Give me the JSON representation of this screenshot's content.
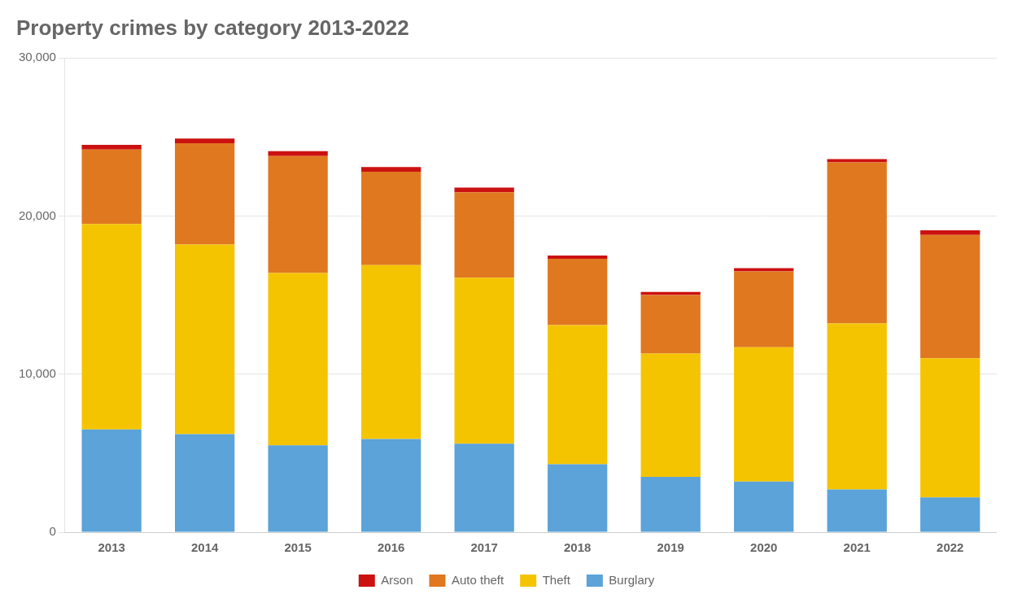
{
  "chart_data": {
    "type": "bar",
    "title": "Property crimes by category 2013-2022",
    "categories": [
      "2013",
      "2014",
      "2015",
      "2016",
      "2017",
      "2018",
      "2019",
      "2020",
      "2021",
      "2022"
    ],
    "series": [
      {
        "name": "Burglary",
        "color": "#5ba3d9",
        "values": [
          6500,
          6200,
          5500,
          5900,
          5600,
          4300,
          3500,
          3200,
          2700,
          2200
        ]
      },
      {
        "name": "Theft",
        "color": "#f5c400",
        "values": [
          13000,
          12000,
          10900,
          11000,
          10500,
          8800,
          7800,
          8500,
          10500,
          8800
        ]
      },
      {
        "name": "Auto theft",
        "color": "#e07820",
        "values": [
          4700,
          6400,
          7400,
          5900,
          5400,
          4200,
          3700,
          4800,
          10200,
          7800
        ]
      },
      {
        "name": "Arson",
        "color": "#cc1111",
        "values": [
          300,
          300,
          300,
          300,
          300,
          200,
          200,
          200,
          200,
          300
        ]
      }
    ],
    "stacked": true,
    "ylim": [
      0,
      30000
    ],
    "yticks": [
      0,
      {
        "value": 10000,
        "label": "10,000"
      },
      {
        "value": 20000,
        "label": "20,000"
      },
      {
        "value": 30000,
        "label": "30,000"
      }
    ],
    "grid": true,
    "legend": "bottom"
  }
}
